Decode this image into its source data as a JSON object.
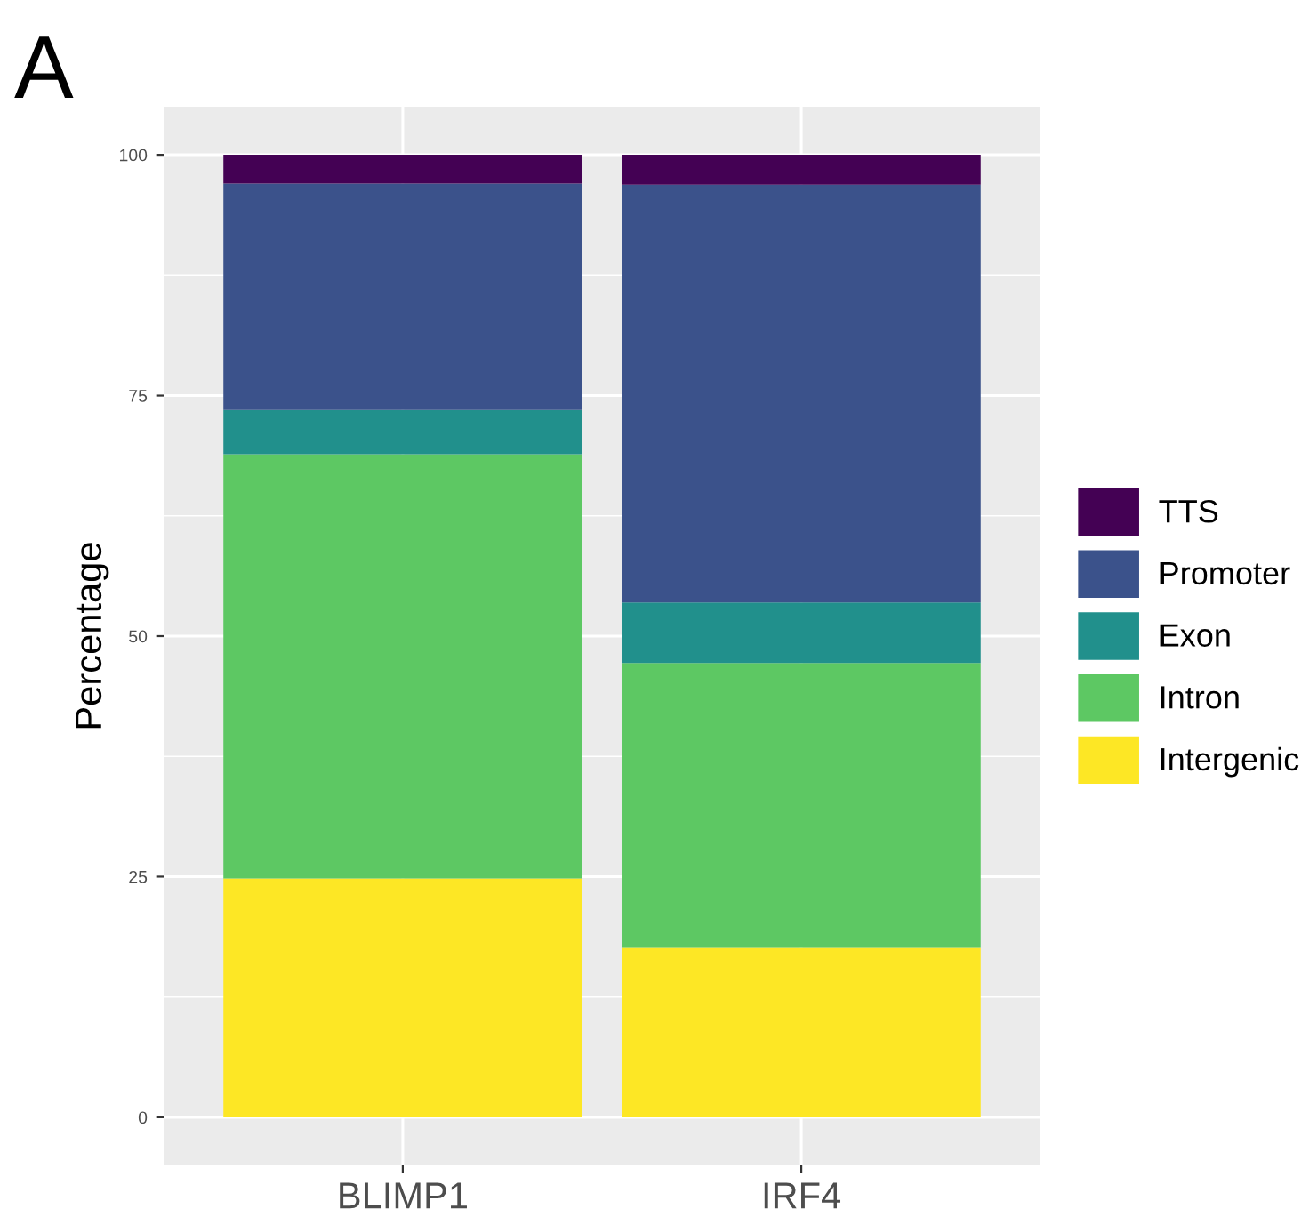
{
  "chart_data": {
    "type": "bar",
    "stacked": true,
    "ylabel": "Percentage",
    "annotations": [
      "A"
    ],
    "categories": [
      "BLIMP1",
      "IRF4"
    ],
    "series": [
      {
        "name": "Intergenic",
        "color": "#fde725",
        "values": [
          24.8,
          17.6
        ]
      },
      {
        "name": "Intron",
        "color": "#5dc863",
        "values": [
          44.1,
          29.6
        ]
      },
      {
        "name": "Exon",
        "color": "#21908c",
        "values": [
          4.6,
          6.3
        ]
      },
      {
        "name": "Promoter",
        "color": "#3b528b",
        "values": [
          23.5,
          43.4
        ]
      },
      {
        "name": "TTS",
        "color": "#440154",
        "values": [
          3.0,
          3.1
        ]
      }
    ],
    "ylim": [
      -5,
      105
    ],
    "yticks": [
      0,
      25,
      50,
      75,
      100
    ],
    "grid": true,
    "legend": "right"
  }
}
